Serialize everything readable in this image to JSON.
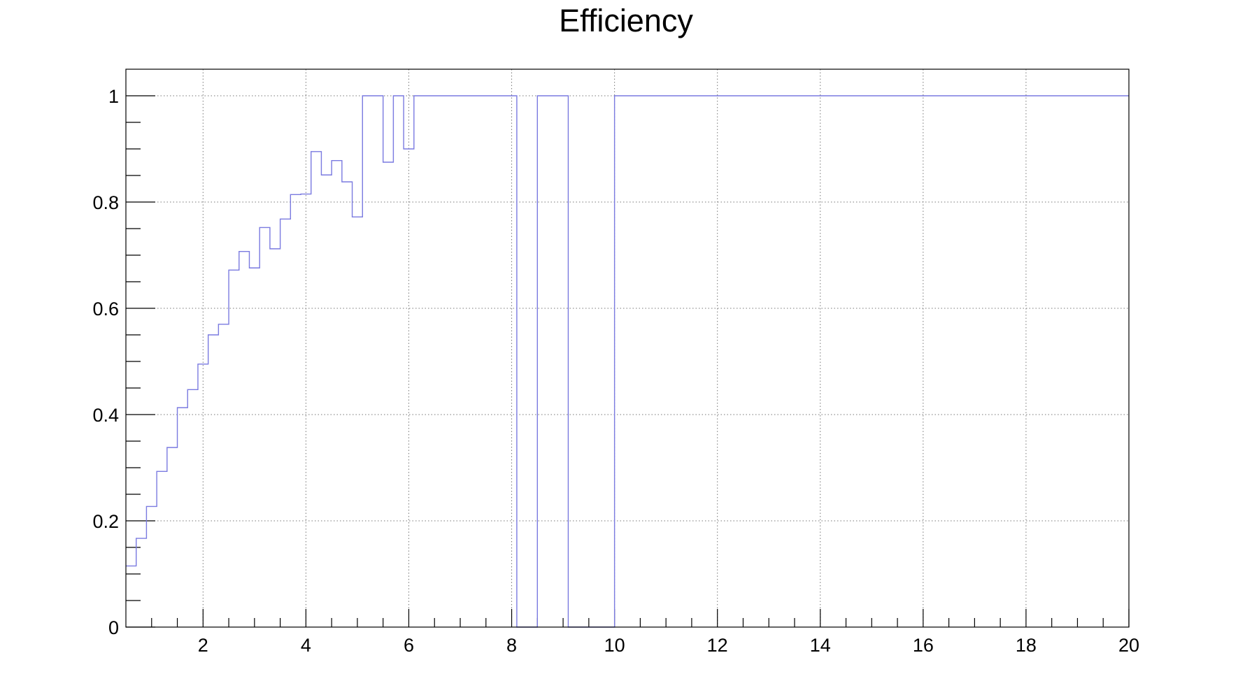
{
  "chart_data": {
    "type": "line",
    "style": "histogram-step",
    "title": "Efficiency",
    "xlabel": "",
    "ylabel": "",
    "xlim": [
      0.5,
      20
    ],
    "ylim": [
      0,
      1.05
    ],
    "x_ticks": [
      2,
      4,
      6,
      8,
      10,
      12,
      14,
      16,
      18,
      20
    ],
    "y_ticks": [
      0,
      0.2,
      0.4,
      0.6,
      0.8,
      1
    ],
    "x_tick_labels": [
      "2",
      "4",
      "6",
      "8",
      "10",
      "12",
      "14",
      "16",
      "18",
      "20"
    ],
    "y_tick_labels": [
      "0",
      "0.2",
      "0.4",
      "0.6",
      "0.8",
      "1"
    ],
    "grid": true,
    "line_color": "#7a7ae0",
    "series": [
      {
        "bins": [
          {
            "x0": 0.5,
            "x1": 0.7,
            "y": 0.115
          },
          {
            "x0": 0.7,
            "x1": 0.9,
            "y": 0.167
          },
          {
            "x0": 0.9,
            "x1": 1.1,
            "y": 0.227
          },
          {
            "x0": 1.1,
            "x1": 1.3,
            "y": 0.293
          },
          {
            "x0": 1.3,
            "x1": 1.5,
            "y": 0.338
          },
          {
            "x0": 1.5,
            "x1": 1.7,
            "y": 0.413
          },
          {
            "x0": 1.7,
            "x1": 1.9,
            "y": 0.447
          },
          {
            "x0": 1.9,
            "x1": 2.1,
            "y": 0.495
          },
          {
            "x0": 2.1,
            "x1": 2.3,
            "y": 0.55
          },
          {
            "x0": 2.3,
            "x1": 2.5,
            "y": 0.57
          },
          {
            "x0": 2.5,
            "x1": 2.7,
            "y": 0.672
          },
          {
            "x0": 2.7,
            "x1": 2.9,
            "y": 0.707
          },
          {
            "x0": 2.9,
            "x1": 3.1,
            "y": 0.676
          },
          {
            "x0": 3.1,
            "x1": 3.3,
            "y": 0.752
          },
          {
            "x0": 3.3,
            "x1": 3.5,
            "y": 0.712
          },
          {
            "x0": 3.5,
            "x1": 3.7,
            "y": 0.768
          },
          {
            "x0": 3.7,
            "x1": 3.9,
            "y": 0.814
          },
          {
            "x0": 3.9,
            "x1": 4.1,
            "y": 0.815
          },
          {
            "x0": 4.1,
            "x1": 4.3,
            "y": 0.895
          },
          {
            "x0": 4.3,
            "x1": 4.5,
            "y": 0.851
          },
          {
            "x0": 4.5,
            "x1": 4.7,
            "y": 0.878
          },
          {
            "x0": 4.7,
            "x1": 4.9,
            "y": 0.838
          },
          {
            "x0": 4.9,
            "x1": 5.1,
            "y": 0.772
          },
          {
            "x0": 5.1,
            "x1": 5.5,
            "y": 1.0
          },
          {
            "x0": 5.5,
            "x1": 5.7,
            "y": 0.875
          },
          {
            "x0": 5.7,
            "x1": 5.9,
            "y": 1.0
          },
          {
            "x0": 5.9,
            "x1": 6.1,
            "y": 0.9
          },
          {
            "x0": 6.1,
            "x1": 8.1,
            "y": 1.0
          },
          {
            "x0": 8.1,
            "x1": 8.5,
            "y": 0.0
          },
          {
            "x0": 8.5,
            "x1": 9.1,
            "y": 1.0
          },
          {
            "x0": 9.1,
            "x1": 10.0,
            "y": 0.0
          },
          {
            "x0": 10.0,
            "x1": 20.0,
            "y": 1.0
          }
        ]
      }
    ]
  }
}
